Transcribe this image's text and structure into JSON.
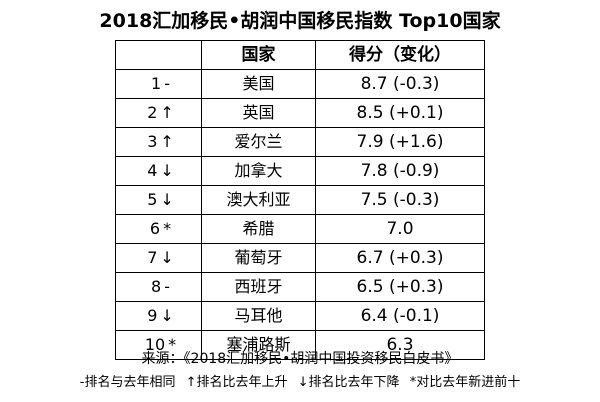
{
  "title": "2018汇加移民•胡润中国移民指数 Top10国家",
  "table": {
    "headers": [
      "",
      "国家",
      "得分（变化）"
    ],
    "rows": [
      {
        "rank": "1",
        "change_icon": "-",
        "country": "美国",
        "score": "8.7 (-0.3)"
      },
      {
        "rank": "2",
        "change_icon": "↑",
        "country": "英国",
        "score": "8.5 (+0.1)"
      },
      {
        "rank": "3",
        "change_icon": "↑",
        "country": "爱尔兰",
        "score": "7.9 (+1.6)"
      },
      {
        "rank": "4",
        "change_icon": "↓",
        "country": "加拿大",
        "score": "7.8 (-0.9)"
      },
      {
        "rank": "5",
        "change_icon": "↓",
        "country": "澳大利亚",
        "score": "7.5 (-0.3)"
      },
      {
        "rank": "6",
        "change_icon": "*",
        "country": "希腊",
        "score": "7.0"
      },
      {
        "rank": "7",
        "change_icon": "↓",
        "country": "葡萄牙",
        "score": "6.7 (+0.3)"
      },
      {
        "rank": "8",
        "change_icon": "-",
        "country": "西班牙",
        "score": "6.5 (+0.3)"
      },
      {
        "rank": "9",
        "change_icon": "↓",
        "country": "马耳他",
        "score": "6.4 (-0.1)"
      },
      {
        "rank": "10",
        "change_icon": "*",
        "country": "塞浦路斯",
        "score": "6.3"
      }
    ]
  },
  "source": "来源：《2018汇加移民•胡润中国投资移民白皮书》",
  "legend": [
    "-排名与去年相同",
    "↑排名比去年上升",
    "↓排名比去年下降",
    "*对比去年新进前十"
  ]
}
